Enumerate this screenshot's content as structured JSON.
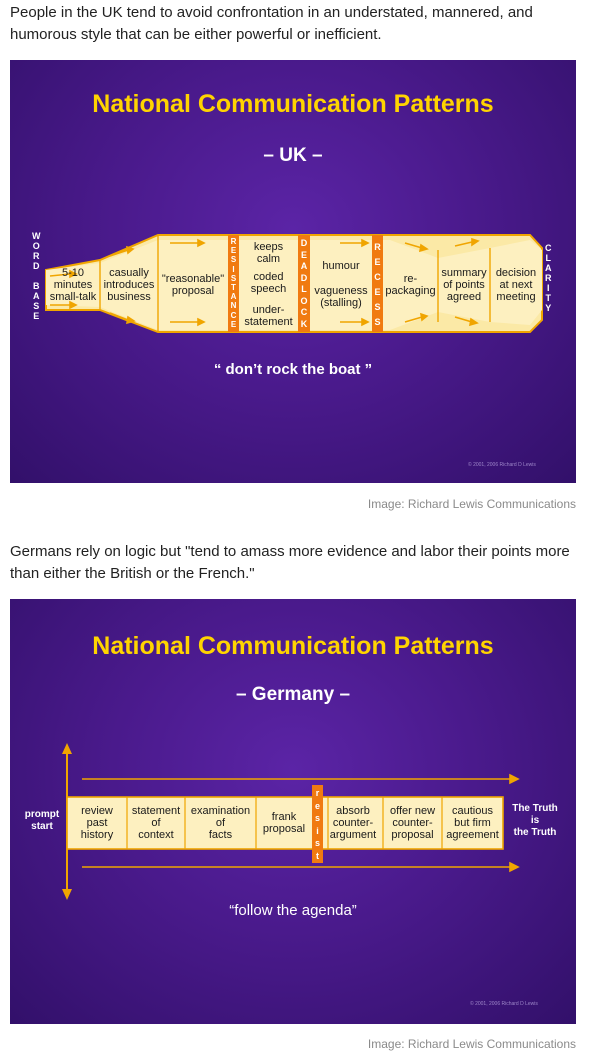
{
  "intro_uk": "People in the UK tend to avoid confrontation in an understated, mannered, and humorous style that can be either powerful or inefficient.",
  "intro_germany": "Germans rely on logic but \"tend to amass more evidence and labor their points more than either the British or the French.\"",
  "caption_uk": "Image: Richard Lewis Communications",
  "caption_germany": "Image: Richard Lewis Communications",
  "uk": {
    "title": "National Communication Patterns",
    "subtitle": "– UK –",
    "quote": "“ don’t rock the boat ”",
    "copyright": "© 2001, 2006 Richard D Lewis",
    "word_base": [
      "W",
      "O",
      "R",
      "D",
      "",
      "B",
      "A",
      "S",
      "E"
    ],
    "clarity": [
      "C",
      "L",
      "A",
      "R",
      "I",
      "T",
      "Y"
    ],
    "resistance": [
      "R",
      "E",
      "S",
      "I",
      "S",
      "T",
      "A",
      "N",
      "C",
      "E"
    ],
    "deadlock": [
      "D",
      "E",
      "A",
      "D",
      "L",
      "O",
      "C",
      "K"
    ],
    "recess": [
      "R",
      "E",
      "C",
      "E",
      "S",
      "S"
    ],
    "stages": {
      "s1": "5-10\nminutes\nsmall-talk",
      "s2": "casually\nintroduces\nbusiness",
      "s3": "\"reasonable\"\nproposal",
      "s4a": "keeps\ncalm",
      "s4b": "coded\nspeech",
      "s4c": "under-\nstatement",
      "s5a": "humour",
      "s5b": "vagueness\n(stalling)",
      "s6": "re-\npackaging",
      "s7": "summary\nof points\nagreed",
      "s8": "decision\nat next\nmeeting"
    }
  },
  "germany": {
    "title": "National Communication Patterns",
    "subtitle": "– Germany –",
    "quote": "“follow the agenda”",
    "copyright": "© 2001, 2006 Richard D Lewis",
    "start": "prompt\nstart",
    "end": "The Truth\nis\nthe Truth",
    "resist": [
      "r",
      "e",
      "s",
      "i",
      "s",
      "t"
    ],
    "stages": {
      "s1": "review\npast\nhistory",
      "s2": "statement\nof\ncontext",
      "s3": "examination\nof\nfacts",
      "s4": "frank\nproposal",
      "s5": "absorb\ncounter-\nargument",
      "s6": "offer new\ncounter-\nproposal",
      "s7": "cautious\nbut firm\nagreement"
    }
  }
}
